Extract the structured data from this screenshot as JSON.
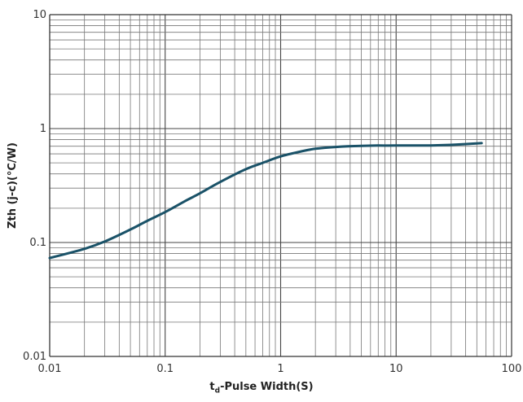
{
  "chart_data": {
    "type": "line",
    "x_scale": "log",
    "y_scale": "log",
    "xlim": [
      0.01,
      100
    ],
    "ylim": [
      0.01,
      10
    ],
    "x_ticks": [
      "0.01",
      "0.1",
      "1",
      "10",
      "100"
    ],
    "y_ticks": [
      "0.01",
      "0.1",
      "1",
      "10"
    ],
    "xlabel_main": "t",
    "xlabel_sub": "d",
    "xlabel_rest": "-Pulse Width(S)",
    "ylabel": "Zth (j-c)(°C/W)",
    "grid": true,
    "line_color": "#1a5268",
    "series": [
      {
        "x": [
          0.01,
          0.02,
          0.03,
          0.05,
          0.07,
          0.1,
          0.15,
          0.2,
          0.3,
          0.5,
          0.7,
          1,
          1.5,
          2,
          3,
          5,
          7,
          10,
          20,
          30,
          55
        ],
        "values": [
          0.073,
          0.088,
          0.102,
          0.13,
          0.155,
          0.185,
          0.232,
          0.27,
          0.34,
          0.44,
          0.5,
          0.57,
          0.63,
          0.665,
          0.69,
          0.705,
          0.71,
          0.71,
          0.712,
          0.72,
          0.745
        ]
      }
    ]
  }
}
